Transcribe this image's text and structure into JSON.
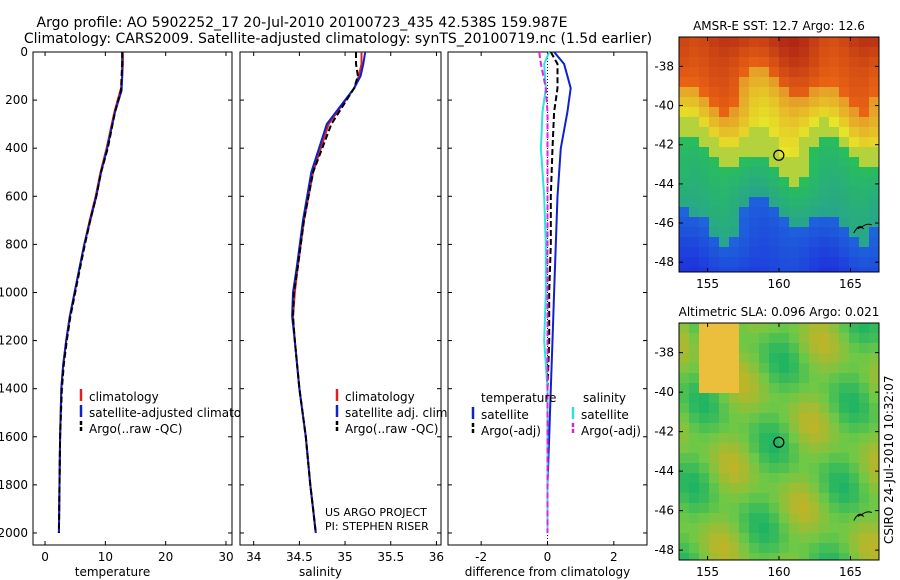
{
  "header": {
    "line1": "Argo profile: AO 5902252_17 20-Jul-2010 20100723_435 42.538S 159.987E",
    "line2": "Climatology: CARS2009. Satellite-adjusted climatology: synTS_20100719.nc (1.5d earlier)"
  },
  "colors": {
    "climatology": "#e02020",
    "satellite": "#1020d0",
    "argo": "#000000",
    "salinity_sat": "#30e0e0",
    "salinity_argo": "#e020e0"
  },
  "chart_data": [
    {
      "type": "line",
      "title": "",
      "xlabel": "temperature",
      "ylabel": "",
      "xlim": [
        -2,
        31
      ],
      "ylim": [
        2050,
        0
      ],
      "xticks": [
        0,
        10,
        20,
        30
      ],
      "yticks": [
        0,
        200,
        400,
        600,
        800,
        1000,
        1200,
        1400,
        1600,
        1800,
        2000
      ],
      "series": [
        {
          "name": "climatology",
          "color": "#e02020",
          "dash": "",
          "x": [
            12.9,
            12.9,
            12.8,
            12.6,
            11.5,
            10.2,
            9.2,
            8.4,
            7.4,
            6.5,
            5.7,
            4.9,
            4.1,
            3.5,
            3.0,
            2.7,
            2.5,
            2.4,
            2.3
          ],
          "y": [
            0,
            50,
            100,
            150,
            250,
            400,
            500,
            600,
            700,
            800,
            900,
            1000,
            1100,
            1200,
            1300,
            1400,
            1600,
            1800,
            2000
          ]
        },
        {
          "name": "satellite-adjusted climatology",
          "color": "#1020d0",
          "dash": "",
          "x": [
            12.8,
            12.8,
            12.8,
            12.7,
            11.6,
            10.3,
            9.3,
            8.5,
            7.5,
            6.5,
            5.7,
            4.9,
            4.1,
            3.5,
            3.0,
            2.7,
            2.5,
            2.4,
            2.3
          ],
          "y": [
            0,
            50,
            100,
            160,
            250,
            400,
            500,
            600,
            700,
            800,
            900,
            1000,
            1100,
            1200,
            1300,
            1400,
            1600,
            1800,
            2000
          ]
        },
        {
          "name": "Argo(..raw -QC)",
          "color": "#000000",
          "dash": "6,3",
          "x": [
            12.8,
            12.8,
            12.7,
            12.6,
            11.6,
            10.4,
            9.3,
            8.5,
            7.5,
            6.6,
            5.8,
            5.0,
            4.2,
            3.6,
            3.1,
            2.8,
            2.5,
            2.4,
            2.3
          ],
          "y": [
            0,
            50,
            100,
            160,
            250,
            400,
            500,
            600,
            700,
            800,
            900,
            1000,
            1100,
            1200,
            1300,
            1400,
            1600,
            1800,
            2000
          ]
        }
      ],
      "legend": [
        "climatology",
        "satellite-adjusted climatology",
        "Argo(..raw -QC)"
      ]
    },
    {
      "type": "line",
      "title": "",
      "xlabel": "salinity",
      "ylabel": "",
      "xlim": [
        33.85,
        36.05
      ],
      "ylim": [
        2050,
        0
      ],
      "xticks": [
        34,
        34.5,
        35,
        35.5,
        36
      ],
      "xticklabels": [
        "34",
        "34.5",
        "35",
        "35.5",
        "36"
      ],
      "series": [
        {
          "name": "climatology",
          "color": "#e02020",
          "dash": "",
          "x": [
            35.18,
            35.18,
            35.15,
            35.1,
            34.82,
            34.65,
            34.55,
            34.48,
            34.45,
            34.43,
            34.45,
            34.5,
            34.57,
            34.62,
            34.65,
            34.68
          ],
          "y": [
            0,
            50,
            100,
            150,
            300,
            500,
            700,
            900,
            1000,
            1100,
            1200,
            1400,
            1600,
            1800,
            1900,
            2000
          ]
        },
        {
          "name": "satellite adj. clim.",
          "color": "#1020d0",
          "dash": "",
          "x": [
            35.22,
            35.2,
            35.17,
            35.1,
            34.8,
            34.63,
            34.54,
            34.47,
            34.43,
            34.42,
            34.45,
            34.5,
            34.57,
            34.62,
            34.65,
            34.68
          ],
          "y": [
            0,
            50,
            100,
            150,
            300,
            500,
            700,
            900,
            1000,
            1100,
            1200,
            1400,
            1600,
            1800,
            1900,
            2000
          ]
        },
        {
          "name": "Argo(..raw -QC)",
          "color": "#000000",
          "dash": "6,3",
          "x": [
            35.12,
            35.12,
            35.14,
            35.1,
            34.85,
            34.65,
            34.55,
            34.48,
            34.44,
            34.43,
            34.45,
            34.5,
            34.57,
            34.62,
            34.65,
            34.68
          ],
          "y": [
            0,
            50,
            100,
            150,
            300,
            500,
            700,
            900,
            1000,
            1100,
            1200,
            1400,
            1600,
            1800,
            1900,
            2000
          ]
        }
      ],
      "legend": [
        "climatology",
        "satellite adj. clim.",
        "Argo(..raw -QC)"
      ],
      "annotations": [
        "US ARGO PROJECT",
        "PI: STEPHEN RISER"
      ]
    },
    {
      "type": "line",
      "title": "",
      "xlabel": "difference from climatology",
      "ylabel": "",
      "xlim": [
        -3,
        3
      ],
      "ylim": [
        2050,
        0
      ],
      "xticks": [
        -2,
        0,
        2
      ],
      "series": [
        {
          "name": "temperature satellite",
          "color": "#1020d0",
          "dash": "",
          "x": [
            0.2,
            0.5,
            0.7,
            0.6,
            0.4,
            0.3,
            0.25,
            0.2,
            0.15,
            0.1,
            0.05,
            0.0,
            0.0,
            0.0
          ],
          "y": [
            0,
            50,
            150,
            250,
            400,
            600,
            800,
            1000,
            1200,
            1400,
            1600,
            1800,
            1900,
            2000
          ]
        },
        {
          "name": "temperature Argo(-adj)",
          "color": "#000000",
          "dash": "6,3",
          "x": [
            0.1,
            0.3,
            0.3,
            0.2,
            0.15,
            0.1,
            0.1,
            0.05,
            0.05,
            0.0,
            0.0,
            0.0,
            0.0,
            0.0
          ],
          "y": [
            0,
            50,
            150,
            250,
            400,
            600,
            800,
            1000,
            1200,
            1400,
            1600,
            1800,
            1900,
            2000
          ]
        },
        {
          "name": "salinity satellite",
          "color": "#30e0e0",
          "dash": "",
          "x": [
            0.05,
            -0.1,
            -0.05,
            -0.15,
            -0.2,
            -0.1,
            -0.05,
            -0.05,
            -0.1,
            0.0,
            0.0,
            0.0,
            0.0,
            0.0
          ],
          "y": [
            0,
            50,
            150,
            250,
            400,
            600,
            800,
            1000,
            1200,
            1400,
            1600,
            1800,
            1900,
            2000
          ]
        },
        {
          "name": "salinity Argo(-adj)",
          "color": "#e020e0",
          "dash": "6,3",
          "x": [
            -0.25,
            -0.2,
            -0.05,
            0.0,
            0.0,
            0.0,
            0.0,
            0.0,
            0.0,
            0.0,
            0.0,
            0.0,
            0.0,
            0.0
          ],
          "y": [
            0,
            50,
            150,
            250,
            400,
            600,
            800,
            1000,
            1200,
            1400,
            1600,
            1800,
            1900,
            2000
          ]
        }
      ],
      "legend_headers": [
        "temperature",
        "salinity"
      ],
      "legend": [
        "satellite",
        "Argo(-adj)",
        "satellite",
        "Argo(-adj)"
      ]
    },
    {
      "type": "heatmap",
      "title": "AMSR-E SST: 12.7 Argo: 12.6",
      "xlim": [
        153,
        167
      ],
      "ylim": [
        -48.5,
        -36.5
      ],
      "xticks": [
        155,
        160,
        165
      ],
      "yticks": [
        -38,
        -40,
        -42,
        -44,
        -46,
        -48
      ],
      "marker": {
        "lon": 159.987,
        "lat": -42.538
      }
    },
    {
      "type": "heatmap",
      "title": "Altimetric SLA: 0.096 Argo: 0.021",
      "xlim": [
        153,
        167
      ],
      "ylim": [
        -48.5,
        -36.5
      ],
      "xticks": [
        155,
        160,
        165
      ],
      "yticks": [
        -38,
        -40,
        -42,
        -44,
        -46,
        -48
      ],
      "marker": {
        "lon": 159.987,
        "lat": -42.538
      }
    }
  ],
  "footer": {
    "credit": "CSIRO 24-Jul-2010 10:32:07"
  }
}
